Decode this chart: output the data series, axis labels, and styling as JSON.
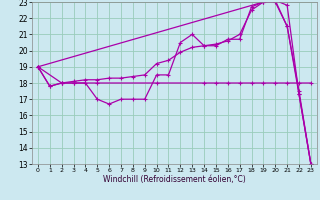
{
  "title": "",
  "xlabel": "Windchill (Refroidissement éolien,°C)",
  "bg_color": "#cce8f0",
  "grid_color": "#99ccbb",
  "line_color": "#aa00aa",
  "xlim": [
    -0.5,
    23.5
  ],
  "ylim": [
    13,
    23
  ],
  "xticks": [
    0,
    1,
    2,
    3,
    4,
    5,
    6,
    7,
    8,
    9,
    10,
    11,
    12,
    13,
    14,
    15,
    16,
    17,
    18,
    19,
    20,
    21,
    22,
    23
  ],
  "yticks": [
    13,
    14,
    15,
    16,
    17,
    18,
    19,
    20,
    21,
    22,
    23
  ],
  "line1_x": [
    0,
    1,
    2,
    3,
    4,
    5,
    6,
    7,
    8,
    9,
    10,
    11,
    12,
    13,
    14,
    15,
    16,
    17,
    18,
    19,
    20,
    21,
    22,
    23
  ],
  "line1_y": [
    19,
    17.8,
    18.0,
    18.0,
    18.0,
    17.0,
    16.7,
    17.0,
    17.0,
    17.0,
    18.5,
    18.5,
    20.5,
    21.0,
    20.3,
    20.3,
    20.7,
    20.7,
    22.7,
    23.0,
    23.0,
    21.5,
    17.5,
    13.0
  ],
  "line2_x": [
    0,
    1,
    2,
    3,
    4,
    5,
    6,
    7,
    8,
    9,
    10,
    11,
    12,
    13,
    14,
    15,
    16,
    17,
    18,
    19,
    20,
    21,
    22,
    23
  ],
  "line2_y": [
    19,
    17.8,
    18.0,
    18.1,
    18.2,
    18.2,
    18.3,
    18.3,
    18.4,
    18.5,
    19.2,
    19.4,
    19.9,
    20.2,
    20.3,
    20.4,
    20.6,
    21.0,
    22.5,
    23.0,
    23.1,
    21.5,
    17.3,
    13.0
  ],
  "line3_x": [
    0,
    2,
    3,
    5,
    10,
    14,
    15,
    16,
    17,
    18,
    19,
    20,
    21,
    22,
    23
  ],
  "line3_y": [
    19,
    18.0,
    18.0,
    18.0,
    18.0,
    18.0,
    18.0,
    18.0,
    18.0,
    18.0,
    18.0,
    18.0,
    18.0,
    18.0,
    18.0
  ],
  "line4_x": [
    0,
    19,
    20,
    21,
    22,
    23
  ],
  "line4_y": [
    19,
    23.0,
    23.1,
    22.8,
    17.3,
    13.0
  ]
}
